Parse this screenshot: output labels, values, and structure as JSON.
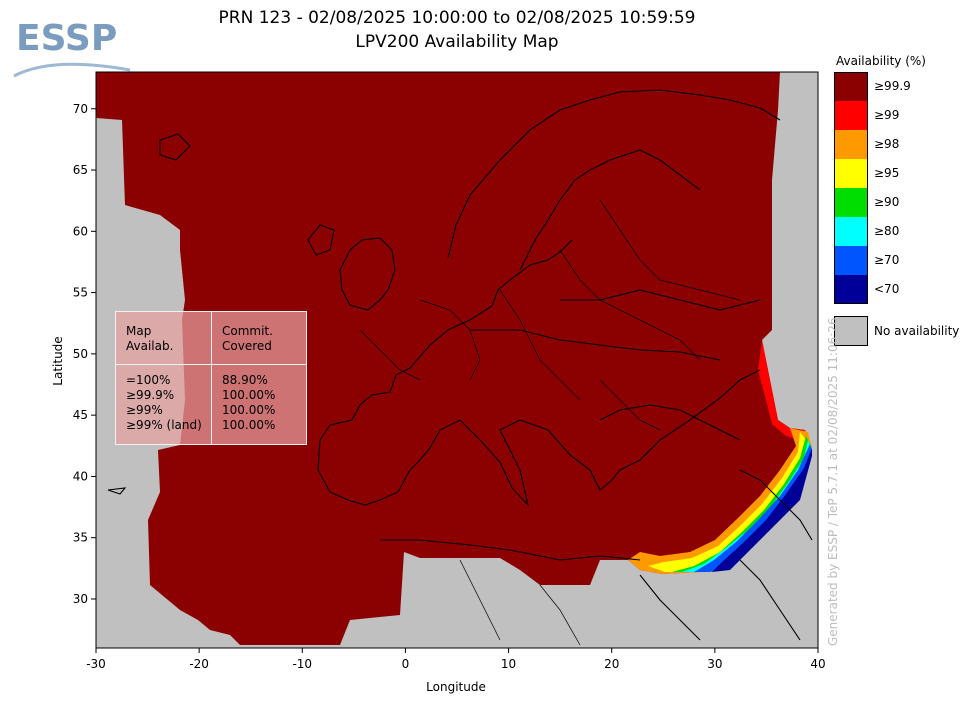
{
  "title_line1": "PRN 123 - 02/08/2025 10:00:00 to 02/08/2025 10:59:59",
  "title_line2": "LPV200 Availability Map",
  "logo_text": "ESSP",
  "axes": {
    "xlabel": "Longitude",
    "ylabel": "Latitude",
    "x_ticks": [
      "-30",
      "-20",
      "-10",
      "0",
      "10",
      "20",
      "30",
      "40"
    ],
    "y_ticks": [
      "30",
      "35",
      "40",
      "45",
      "50",
      "55",
      "60",
      "65",
      "70"
    ],
    "x_range": [
      -30,
      40
    ],
    "y_range": [
      26,
      73
    ]
  },
  "legend": {
    "title": "Availability (%)",
    "items": [
      {
        "label": "≥99.9",
        "color": "#8b0000"
      },
      {
        "label": "≥99",
        "color": "#ff0000"
      },
      {
        "label": "≥98",
        "color": "#ff9900"
      },
      {
        "label": "≥95",
        "color": "#ffff00"
      },
      {
        "label": "≥90",
        "color": "#00dd00"
      },
      {
        "label": "≥80",
        "color": "#00ffff"
      },
      {
        "label": "≥70",
        "color": "#0055ff"
      },
      {
        "label": "<70",
        "color": "#000099"
      }
    ],
    "no_availability_label": "No availability",
    "no_availability_color": "#c0c0c0"
  },
  "stats_box": {
    "header_col1": [
      "Map",
      "Availab."
    ],
    "header_col2": [
      "Commit.",
      "Covered"
    ],
    "rows": [
      {
        "metric": "=100%",
        "value": "88.90%"
      },
      {
        "metric": "≥99.9%",
        "value": "100.00%"
      },
      {
        "metric": "≥99%",
        "value": "100.00%"
      },
      {
        "metric": "≥99% (land)",
        "value": "100.00%"
      }
    ]
  },
  "credit": "Generated by ESSP / TeP 5.7.1 at 02/08/2025 11:06:26",
  "colors": {
    "ocean": "#c0c0c0",
    "coverage": "#8b0000",
    "coastline": "#000000"
  }
}
